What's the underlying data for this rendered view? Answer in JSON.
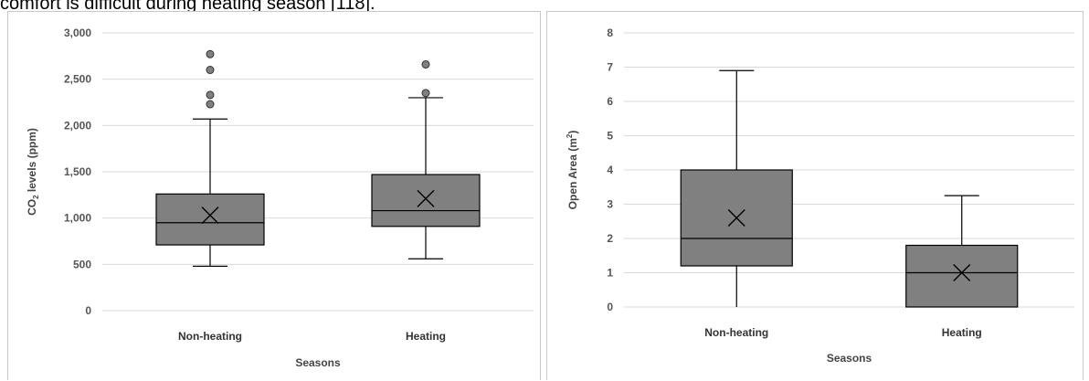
{
  "caption_text": "comfort is difficult during heating season [118].",
  "colors": {
    "box_fill": "#808080",
    "stroke": "#000000",
    "grid": "#d9d9d9",
    "outlier_fill": "#808080"
  },
  "chart_data": [
    {
      "type": "box",
      "categories": [
        "Non-heating",
        "Heating"
      ],
      "xlabel": "Seasons",
      "ylabel": {
        "main": "CO",
        "subscript": "2",
        "rest": " levels (ppm)"
      },
      "ylim": [
        0,
        3000
      ],
      "yticks": [
        0,
        500,
        1000,
        1500,
        2000,
        2500,
        3000
      ],
      "ytick_labels": [
        "0",
        "500",
        "1,000",
        "1,500",
        "2,000",
        "2,500",
        "3,000"
      ],
      "grid": true,
      "series": [
        {
          "category": "Non-heating",
          "whisker_low": 480,
          "q1": 710,
          "median": 950,
          "q3": 1260,
          "whisker_high": 2070,
          "mean": 1030,
          "outliers": [
            2230,
            2330,
            2600,
            2770
          ]
        },
        {
          "category": "Heating",
          "whisker_low": 560,
          "q1": 910,
          "median": 1080,
          "q3": 1470,
          "whisker_high": 2300,
          "mean": 1210,
          "outliers": [
            2350,
            2660
          ]
        }
      ]
    },
    {
      "type": "box",
      "categories": [
        "Non-heating",
        "Heating"
      ],
      "xlabel": "Seasons",
      "ylabel": {
        "main": "Open Area (m",
        "superscript": "2",
        "rest": ")"
      },
      "ylim": [
        0,
        8
      ],
      "yticks": [
        0,
        1,
        2,
        3,
        4,
        5,
        6,
        7,
        8
      ],
      "ytick_labels": [
        "0",
        "1",
        "2",
        "3",
        "4",
        "5",
        "6",
        "7",
        "8"
      ],
      "grid": true,
      "series": [
        {
          "category": "Non-heating",
          "whisker_low": 0,
          "q1": 1.2,
          "median": 2.0,
          "q3": 4.0,
          "whisker_high": 6.9,
          "mean": 2.6,
          "outliers": []
        },
        {
          "category": "Heating",
          "whisker_low": 0,
          "q1": 0,
          "median": 1.0,
          "q3": 1.8,
          "whisker_high": 3.25,
          "mean": 1.0,
          "outliers": []
        }
      ]
    }
  ]
}
